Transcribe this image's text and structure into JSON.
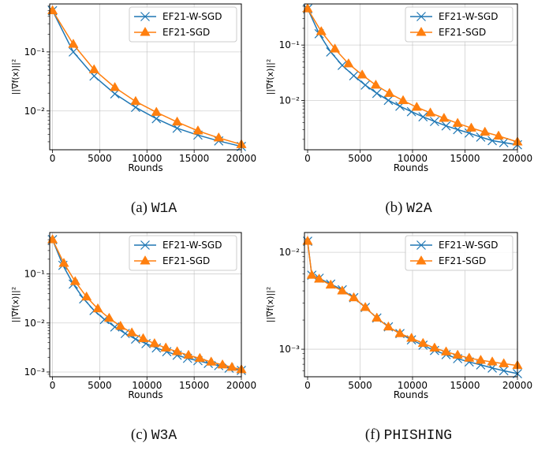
{
  "legend_labels": [
    "EF21-W-SGD",
    "EF21-SGD"
  ],
  "colors": {
    "blue": "#1f77b4",
    "orange": "#ff7f0e"
  },
  "captions": [
    {
      "letter": "(a)",
      "name": "W1A"
    },
    {
      "letter": "(b)",
      "name": "W2A"
    },
    {
      "letter": "(c)",
      "name": "W3A"
    },
    {
      "letter": "(f)",
      "name": "PHISHING"
    }
  ],
  "chart_data": [
    {
      "type": "line",
      "yscale": "log",
      "grid": true,
      "legend": "top-right",
      "xlabel": "Rounds",
      "ylabel": "||∇f(x)||²",
      "xlim": [
        -300,
        20000
      ],
      "ylim": [
        0.0022,
        0.65
      ],
      "xticks": [
        0,
        5000,
        10000,
        15000,
        20000
      ],
      "xticklabels": [
        "0",
        "5000",
        "10000",
        "15000",
        "20000"
      ],
      "yticks": [
        0.1,
        0.01
      ],
      "yticklabels": [
        "10⁻¹",
        "10⁻²"
      ],
      "series": [
        {
          "name": "EF21-W-SGD",
          "marker": "x",
          "x": [
            0,
            2200,
            4400,
            6600,
            8800,
            11000,
            13200,
            15400,
            17600,
            20000
          ],
          "y": [
            0.5,
            0.1,
            0.039,
            0.0195,
            0.0115,
            0.0074,
            0.0051,
            0.0039,
            0.0031,
            0.0025
          ]
        },
        {
          "name": "EF21-SGD",
          "marker": "^",
          "x": [
            0,
            2200,
            4400,
            6600,
            8800,
            11000,
            13200,
            15400,
            17600,
            20000
          ],
          "y": [
            0.5,
            0.135,
            0.05,
            0.025,
            0.0145,
            0.0095,
            0.0065,
            0.0046,
            0.0035,
            0.0027
          ]
        }
      ]
    },
    {
      "type": "line",
      "yscale": "log",
      "grid": true,
      "legend": "top-right",
      "xlabel": "Rounds",
      "ylabel": "||∇f(x)||²",
      "xlim": [
        -300,
        20000
      ],
      "ylim": [
        0.0013,
        0.55
      ],
      "xticks": [
        0,
        5000,
        10000,
        15000,
        20000
      ],
      "xticklabels": [
        "0",
        "5000",
        "10000",
        "15000",
        "20000"
      ],
      "yticks": [
        0.1,
        0.01
      ],
      "yticklabels": [
        "10⁻¹",
        "10⁻²"
      ],
      "series": [
        {
          "name": "EF21-W-SGD",
          "marker": "x",
          "x": [
            0,
            1100,
            2200,
            3300,
            4400,
            5500,
            6600,
            7700,
            8800,
            9900,
            11000,
            12100,
            13200,
            14300,
            15400,
            16500,
            17600,
            18700,
            20000
          ],
          "y": [
            0.45,
            0.16,
            0.075,
            0.043,
            0.028,
            0.019,
            0.0135,
            0.0101,
            0.0079,
            0.0063,
            0.0051,
            0.0042,
            0.0035,
            0.003,
            0.0026,
            0.0022,
            0.0019,
            0.00175,
            0.0016
          ]
        },
        {
          "name": "EF21-SGD",
          "marker": "^",
          "x": [
            0,
            1300,
            2600,
            3900,
            5200,
            6500,
            7800,
            9100,
            10400,
            11700,
            13000,
            14300,
            15600,
            16900,
            18200,
            20000
          ],
          "y": [
            0.45,
            0.175,
            0.085,
            0.046,
            0.029,
            0.019,
            0.0135,
            0.01,
            0.0076,
            0.006,
            0.0048,
            0.0039,
            0.0032,
            0.0027,
            0.0023,
            0.0018
          ]
        }
      ]
    },
    {
      "type": "line",
      "yscale": "log",
      "grid": true,
      "legend": "top-right",
      "xlabel": "Rounds",
      "ylabel": "||∇f(x)||²",
      "xlim": [
        -300,
        20000
      ],
      "ylim": [
        0.0008,
        0.7
      ],
      "xticks": [
        0,
        5000,
        10000,
        15000,
        20000
      ],
      "xticklabels": [
        "0",
        "5000",
        "10000",
        "15000",
        "20000"
      ],
      "yticks": [
        0.1,
        0.01,
        0.001
      ],
      "yticklabels": [
        "10⁻¹",
        "10⁻²",
        "10⁻³"
      ],
      "series": [
        {
          "name": "EF21-W-SGD",
          "marker": "x",
          "x": [
            0,
            1100,
            2200,
            3300,
            4400,
            5500,
            6600,
            7700,
            8800,
            9900,
            11000,
            12100,
            13200,
            14300,
            15400,
            16500,
            17600,
            18700,
            20000
          ],
          "y": [
            0.5,
            0.15,
            0.062,
            0.031,
            0.018,
            0.0118,
            0.0083,
            0.0061,
            0.0047,
            0.0038,
            0.0031,
            0.0026,
            0.0022,
            0.0019,
            0.0017,
            0.0015,
            0.00135,
            0.0012,
            0.00108
          ]
        },
        {
          "name": "EF21-SGD",
          "marker": "^",
          "x": [
            0,
            1200,
            2400,
            3600,
            4800,
            6000,
            7200,
            8400,
            9600,
            10800,
            12000,
            13200,
            14400,
            15600,
            16800,
            18000,
            19000,
            20000
          ],
          "y": [
            0.5,
            0.165,
            0.07,
            0.034,
            0.0195,
            0.0125,
            0.0086,
            0.0063,
            0.0048,
            0.0038,
            0.0031,
            0.0026,
            0.0022,
            0.0019,
            0.0016,
            0.0014,
            0.00125,
            0.00112
          ]
        }
      ]
    },
    {
      "type": "line",
      "yscale": "log",
      "grid": true,
      "legend": "top-right",
      "xlabel": "Rounds",
      "ylabel": "||∇f(x)||²",
      "xlim": [
        -300,
        20000
      ],
      "ylim": [
        0.00052,
        0.016
      ],
      "xticks": [
        0,
        5000,
        10000,
        15000,
        20000
      ],
      "xticklabels": [
        "0",
        "5000",
        "10000",
        "15000",
        "20000"
      ],
      "yticks": [
        0.01,
        0.001
      ],
      "yticklabels": [
        "10⁻²",
        "10⁻³"
      ],
      "series": [
        {
          "name": "EF21-W-SGD",
          "marker": "x",
          "x": [
            0,
            400,
            1100,
            2200,
            3300,
            4400,
            5500,
            6600,
            7700,
            8800,
            9900,
            11000,
            12100,
            13200,
            14300,
            15400,
            16500,
            17600,
            18700,
            20000
          ],
          "y": [
            0.013,
            0.0058,
            0.0054,
            0.0047,
            0.0041,
            0.0034,
            0.0027,
            0.0021,
            0.0017,
            0.00145,
            0.00125,
            0.0011,
            0.00097,
            0.00088,
            0.0008,
            0.00074,
            0.00069,
            0.00064,
            0.0006,
            0.00056
          ]
        },
        {
          "name": "EF21-SGD",
          "marker": "^",
          "x": [
            0,
            400,
            1100,
            2200,
            3300,
            4400,
            5500,
            6600,
            7700,
            8800,
            9900,
            11000,
            12100,
            13200,
            14300,
            15400,
            16500,
            17600,
            18700,
            20000
          ],
          "y": [
            0.013,
            0.0058,
            0.0053,
            0.0046,
            0.004,
            0.0034,
            0.0027,
            0.0021,
            0.0017,
            0.00145,
            0.0013,
            0.00115,
            0.00103,
            0.00094,
            0.00087,
            0.00081,
            0.00077,
            0.00074,
            0.00071,
            0.00068
          ]
        }
      ]
    }
  ]
}
